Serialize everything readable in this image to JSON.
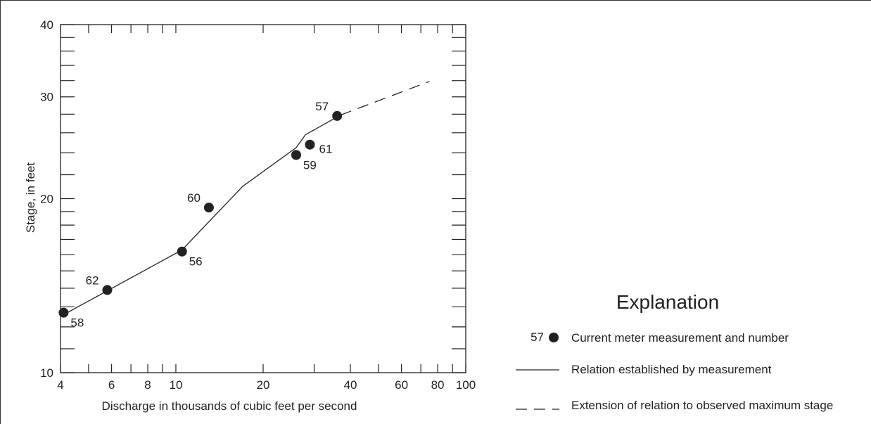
{
  "chart_data": {
    "type": "scatter",
    "xlabel": "Discharge in thousands of cubic feet per second",
    "ylabel": "Stage, in feet",
    "xscale": "log",
    "yscale": "log",
    "xlim": [
      4,
      100
    ],
    "ylim": [
      10,
      40
    ],
    "x_tick_labels": [
      4,
      6,
      8,
      10,
      20,
      40,
      60,
      80,
      100
    ],
    "y_tick_labels": [
      10,
      20,
      30,
      40
    ],
    "x_minor_ticks": [
      4,
      5,
      6,
      7,
      8,
      9,
      10,
      20,
      30,
      40,
      50,
      60,
      70,
      80,
      90,
      100
    ],
    "y_minor_ticks": [
      10,
      11,
      12,
      13,
      14,
      15,
      16,
      17,
      18,
      19,
      20,
      22,
      24,
      26,
      28,
      30,
      32,
      34,
      36,
      38,
      40
    ],
    "grid": false,
    "points": [
      {
        "label": "58",
        "x": 4.1,
        "y": 12.7,
        "label_pos": "below-right"
      },
      {
        "label": "62",
        "x": 5.8,
        "y": 13.9,
        "label_pos": "above-left"
      },
      {
        "label": "56",
        "x": 10.5,
        "y": 16.2,
        "label_pos": "below-right"
      },
      {
        "label": "60",
        "x": 13.0,
        "y": 19.3,
        "label_pos": "above-left"
      },
      {
        "label": "59",
        "x": 26.0,
        "y": 23.8,
        "label_pos": "below-right"
      },
      {
        "label": "61",
        "x": 29.0,
        "y": 24.8,
        "label_pos": "right"
      },
      {
        "label": "57",
        "x": 36.0,
        "y": 27.8,
        "label_pos": "above-left"
      }
    ],
    "established_relation": [
      [
        4.1,
        12.6
      ],
      [
        10.5,
        16.3
      ],
      [
        17.0,
        21.0
      ],
      [
        26.0,
        24.5
      ],
      [
        28.0,
        25.8
      ],
      [
        37.0,
        27.9
      ]
    ],
    "extended_relation": [
      [
        37.0,
        27.9
      ],
      [
        75.0,
        31.9
      ]
    ],
    "legend": {
      "title": "Explanation",
      "position": "bottom-right",
      "marker_label": "57",
      "entries": [
        {
          "symbol": "point",
          "text": "Current meter measurement and number"
        },
        {
          "symbol": "solid",
          "text": "Relation established by measurement"
        },
        {
          "symbol": "dashed",
          "text": "Extension of relation to observed maximum stage"
        }
      ]
    }
  }
}
